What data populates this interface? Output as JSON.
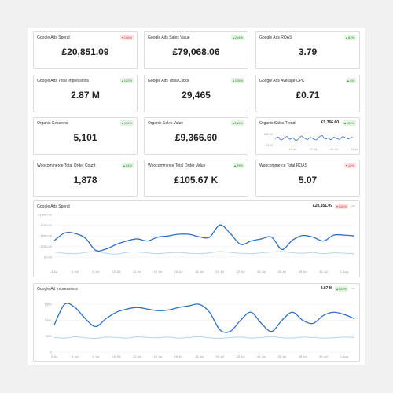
{
  "cards": [
    {
      "title": "Google Ads Spend",
      "badge": "106%",
      "trend": "down",
      "value": "£20,851.09"
    },
    {
      "title": "Google Ads Sales Value",
      "badge": "204%",
      "trend": "up",
      "value": "£79,068.06"
    },
    {
      "title": "Google Ads ROAS",
      "badge": "62%",
      "trend": "up",
      "value": "3.79"
    },
    {
      "title": "Google Ads Total Impressions",
      "badge": "122%",
      "trend": "up",
      "value": "2.87 M"
    },
    {
      "title": "Google Ads Total Clicks",
      "badge": "126%",
      "trend": "up",
      "value": "29,465"
    },
    {
      "title": "Google Ads Average CPC",
      "badge": "8%",
      "trend": "up",
      "value": "£0.71"
    },
    {
      "title": "Organic Sessions",
      "badge": "100%",
      "trend": "up",
      "value": "5,101"
    },
    {
      "title": "Organic Sales Value",
      "badge": "136%",
      "trend": "up",
      "value": "£9,366.60"
    },
    {
      "title": "Organic Sales Trend",
      "badge": "102%",
      "trend": "up",
      "value": "£9,366.60",
      "sparkline": {
        "type": "line",
        "color": "#2f6fc0",
        "categories": [
          null,
          null,
          null,
          null,
          null,
          null,
          "10 Jul",
          null,
          null,
          null,
          null,
          null,
          null,
          "17 Jul",
          null,
          null,
          null,
          null,
          null,
          null,
          "24 Jul",
          null,
          null,
          null,
          null,
          null,
          null,
          "31 Jul"
        ],
        "values": [
          30,
          38,
          25,
          32,
          40,
          28,
          35,
          22,
          30,
          42,
          33,
          27,
          36,
          30,
          25,
          38,
          44,
          29,
          33,
          26,
          37,
          31,
          28,
          40,
          34,
          30,
          36,
          32
        ],
        "ylim": [
          0,
          60
        ],
        "yticks": [
          {
            "value": 0,
            "label": "£0.00"
          },
          {
            "value": 50,
            "label": "£50.00"
          }
        ]
      }
    },
    {
      "title": "Woocommerce Total Order Count",
      "badge": "64%",
      "trend": "up",
      "value": "1,878"
    },
    {
      "title": "Woocommerce Total Order Value",
      "badge": "75%",
      "trend": "up",
      "value": "£105.67 K"
    },
    {
      "title": "Woocommerce Total ROAS",
      "badge": "15%",
      "trend": "down",
      "value": "5.07"
    }
  ],
  "charts": [
    {
      "type": "line",
      "title": "Google Ads Spend",
      "value": "£20,851.09",
      "badge": "106%",
      "trend": "down",
      "categories": [
        "4 Jul",
        null,
        "6 Jul",
        null,
        "8 Jul",
        null,
        "10 Jul",
        null,
        "12 Jul",
        null,
        "14 Jul",
        null,
        "16 Jul",
        null,
        "18 Jul",
        null,
        "20 Jul",
        null,
        "22 Jul",
        null,
        "24 Jul",
        null,
        "26 Jul",
        null,
        "28 Jul",
        null,
        "30 Jul",
        null,
        "1 Aug",
        null
      ],
      "series": [
        {
          "color": "#2f6fc0",
          "values": [
            390,
            570,
            560,
            450,
            160,
            190,
            300,
            380,
            430,
            380,
            470,
            500,
            540,
            540,
            480,
            470,
            760,
            560,
            300,
            380,
            430,
            470,
            180,
            400,
            510,
            470,
            380,
            520,
            520,
            500
          ]
        },
        {
          "color": "#b9d2ee",
          "values": [
            120,
            90,
            80,
            110,
            130,
            90,
            70,
            110,
            120,
            100,
            80,
            100,
            110,
            90,
            80,
            100,
            130,
            110,
            90,
            80,
            100,
            120,
            130,
            100,
            90,
            110,
            80,
            100,
            90,
            80
          ]
        }
      ],
      "ylim": [
        0,
        1100
      ],
      "yticks": [
        {
          "value": 0,
          "label": "£0.00"
        },
        {
          "value": 250,
          "label": "£250.00"
        },
        {
          "value": 500,
          "label": "£500.00"
        },
        {
          "value": 750,
          "label": "£750.00"
        },
        {
          "value": 1000,
          "label": "£1,000.00"
        }
      ]
    },
    {
      "type": "line",
      "title": "Google Ad Impressions",
      "value": "2.87 M",
      "badge": "122%",
      "trend": "up",
      "categories": [
        "4 Jul",
        null,
        "6 Jul",
        null,
        "8 Jul",
        null,
        "10 Jul",
        null,
        "12 Jul",
        null,
        "14 Jul",
        null,
        "16 Jul",
        null,
        "18 Jul",
        null,
        "20 Jul",
        null,
        "22 Jul",
        null,
        "24 Jul",
        null,
        "26 Jul",
        null,
        "28 Jul",
        null,
        "30 Jul",
        null,
        "1 Aug",
        null
      ],
      "series": [
        {
          "color": "#2f6fc0",
          "values": [
            85000,
            150000,
            140000,
            105000,
            80000,
            105000,
            125000,
            135000,
            140000,
            135000,
            130000,
            132000,
            140000,
            145000,
            150000,
            125000,
            70000,
            65000,
            100000,
            125000,
            90000,
            65000,
            100000,
            125000,
            100000,
            90000,
            115000,
            125000,
            118000,
            105000
          ]
        },
        {
          "color": "#b9d2ee",
          "values": [
            46000,
            44000,
            48000,
            45000,
            43000,
            47000,
            46000,
            44000,
            48000,
            46000,
            45000,
            47000,
            44000,
            46000,
            48000,
            45000,
            43000,
            46000,
            47000,
            44000,
            46000,
            48000,
            45000,
            44000,
            47000,
            46000,
            44000,
            45000,
            47000,
            46000
          ]
        }
      ],
      "ylim": [
        0,
        175000
      ],
      "yticks": [
        {
          "value": 0,
          "label": "0"
        },
        {
          "value": 50000,
          "label": "50K"
        },
        {
          "value": 100000,
          "label": "100K"
        },
        {
          "value": 150000,
          "label": "150K"
        }
      ]
    }
  ]
}
